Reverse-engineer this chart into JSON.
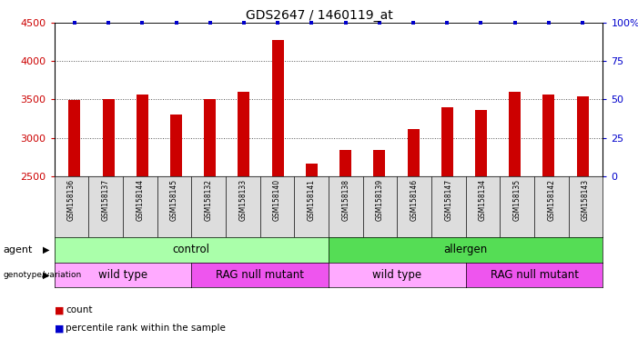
{
  "title": "GDS2647 / 1460119_at",
  "samples": [
    "GSM158136",
    "GSM158137",
    "GSM158144",
    "GSM158145",
    "GSM158132",
    "GSM158133",
    "GSM158140",
    "GSM158141",
    "GSM158138",
    "GSM158139",
    "GSM158146",
    "GSM158147",
    "GSM158134",
    "GSM158135",
    "GSM158142",
    "GSM158143"
  ],
  "counts": [
    3490,
    3510,
    3560,
    3300,
    3500,
    3600,
    4270,
    2660,
    2840,
    2840,
    3110,
    3400,
    3360,
    3600,
    3560,
    3540
  ],
  "ylim_left": [
    2500,
    4500
  ],
  "ylim_right": [
    0,
    100
  ],
  "yticks_left": [
    2500,
    3000,
    3500,
    4000,
    4500
  ],
  "yticks_right": [
    0,
    25,
    50,
    75,
    100
  ],
  "ytick_labels_right": [
    "0",
    "25",
    "50",
    "75",
    "100%"
  ],
  "bar_color": "#cc0000",
  "percentile_color": "#0000cc",
  "background_color": "#ffffff",
  "agent_control_color": "#aaffaa",
  "agent_allergen_color": "#55dd55",
  "geno_wt_color": "#ffaaff",
  "geno_rag_color": "#ee55ee",
  "grid_color": "#555555",
  "tick_color_left": "#cc0000",
  "tick_color_right": "#0000cc",
  "sample_box_color": "#dddddd"
}
